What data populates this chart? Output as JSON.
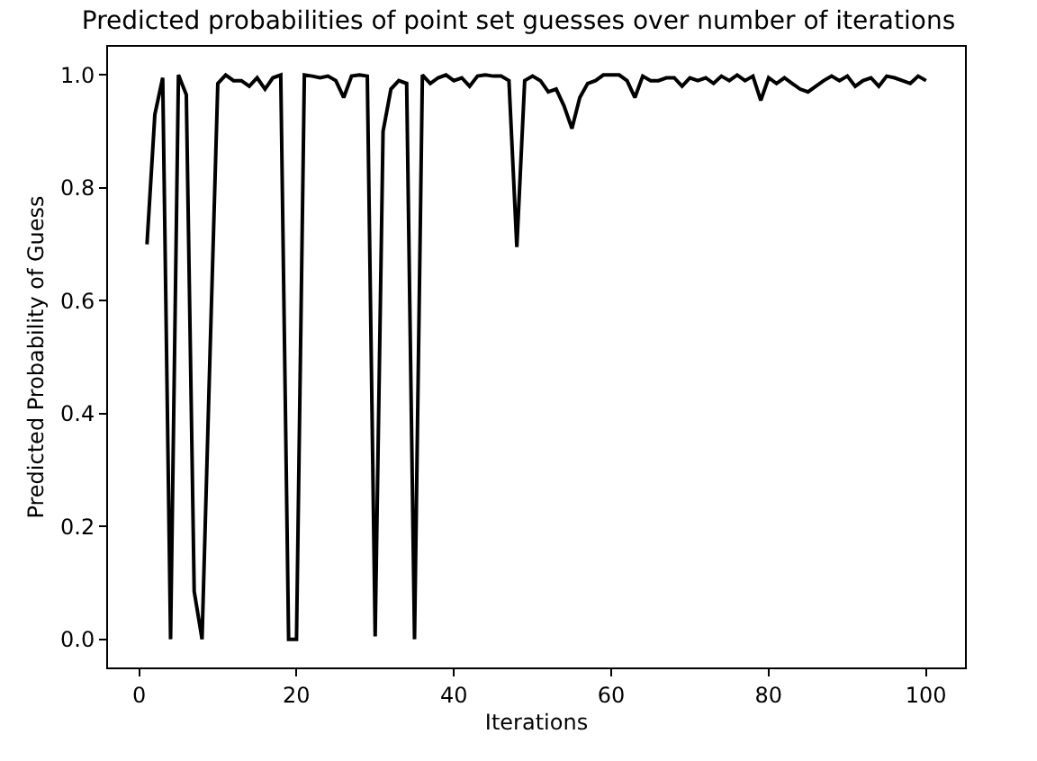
{
  "chart_data": {
    "type": "line",
    "title": "Predicted probabilities of point set guesses over number of iterations",
    "xlabel": "Iterations",
    "ylabel": "Predicted Probability of Guess",
    "x": [
      1,
      2,
      3,
      4,
      5,
      6,
      7,
      8,
      9,
      10,
      11,
      12,
      13,
      14,
      15,
      16,
      17,
      18,
      19,
      20,
      21,
      22,
      23,
      24,
      25,
      26,
      27,
      28,
      29,
      30,
      31,
      32,
      33,
      34,
      35,
      36,
      37,
      38,
      39,
      40,
      41,
      42,
      43,
      44,
      45,
      46,
      47,
      48,
      49,
      50,
      51,
      52,
      53,
      54,
      55,
      56,
      57,
      58,
      59,
      60,
      61,
      62,
      63,
      64,
      65,
      66,
      67,
      68,
      69,
      70,
      71,
      72,
      73,
      74,
      75,
      76,
      77,
      78,
      79,
      80,
      81,
      82,
      83,
      84,
      85,
      86,
      87,
      88,
      89,
      90,
      91,
      92,
      93,
      94,
      95,
      96,
      97,
      98,
      99,
      100
    ],
    "series": [
      {
        "color": "#000000",
        "values": [
          0.7,
          0.93,
          0.995,
          0.0,
          1.0,
          0.965,
          0.085,
          0.0,
          0.5,
          0.985,
          1.0,
          0.99,
          0.99,
          0.98,
          0.995,
          0.975,
          0.995,
          1.0,
          0.0,
          0.0,
          1.0,
          0.998,
          0.995,
          0.998,
          0.99,
          0.96,
          0.998,
          1.0,
          0.998,
          0.005,
          0.9,
          0.975,
          0.99,
          0.985,
          0.0,
          1.0,
          0.985,
          0.995,
          1.0,
          0.99,
          0.995,
          0.98,
          0.998,
          1.0,
          0.998,
          0.998,
          0.99,
          0.695,
          0.99,
          0.998,
          0.99,
          0.97,
          0.975,
          0.945,
          0.905,
          0.96,
          0.985,
          0.99,
          1.0,
          1.0,
          1.0,
          0.99,
          0.96,
          0.998,
          0.99,
          0.99,
          0.995,
          0.995,
          0.98,
          0.995,
          0.99,
          0.995,
          0.985,
          0.998,
          0.99,
          1.0,
          0.99,
          0.998,
          0.955,
          0.995,
          0.985,
          0.995,
          0.985,
          0.975,
          0.97,
          0.98,
          0.99,
          0.998,
          0.99,
          0.998,
          0.98,
          0.99,
          0.995,
          0.98,
          0.998,
          0.995,
          0.99,
          0.985,
          0.998,
          0.99
        ]
      }
    ],
    "xlim": [
      -3.95,
      104.95
    ],
    "xticks": [
      0,
      20,
      40,
      60,
      80,
      100
    ],
    "ylim": [
      -0.05,
      1.05
    ],
    "yticks": [
      {
        "value": 0,
        "label": "0.0"
      },
      {
        "value": 0.2,
        "label": "0.2"
      },
      {
        "value": 0.4,
        "label": "0.4"
      },
      {
        "value": 0.6,
        "label": "0.6"
      },
      {
        "value": 0.8,
        "label": "0.8"
      },
      {
        "value": 1,
        "label": "1.0"
      }
    ],
    "marker": "none",
    "line_style": "solid"
  }
}
